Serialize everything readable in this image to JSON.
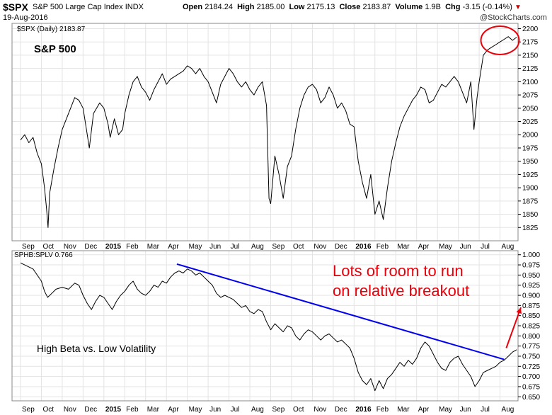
{
  "header": {
    "symbol": "$SPX",
    "name": "S&P 500 Large Cap Index",
    "exchange": "INDX",
    "date": "19-Aug-2016",
    "open_label": "Open",
    "open": "2184.24",
    "high_label": "High",
    "high": "2185.00",
    "low_label": "Low",
    "low": "2175.13",
    "close_label": "Close",
    "close": "2183.87",
    "volume_label": "Volume",
    "volume": "1.9B",
    "chg_label": "Chg",
    "chg": "-3.15 (-0.14%)",
    "chg_arrow": "▼",
    "brand": "@StockCharts.com"
  },
  "colors": {
    "price": "#000000",
    "ratio": "#000000",
    "trendline": "#0000ee",
    "annotation": "#e8000a",
    "circle": "#e8000a"
  },
  "chart_data": [
    {
      "type": "line",
      "title": "S&P 500",
      "legend": "$SPX (Daily) 2183.87",
      "ylim": [
        1800,
        2210
      ],
      "yticks": [
        1825,
        1850,
        1875,
        1900,
        1925,
        1950,
        1975,
        2000,
        2025,
        2050,
        2075,
        2100,
        2125,
        2150,
        2175,
        2200
      ],
      "x_months": [
        "Sep",
        "Oct",
        "Nov",
        "Dec",
        "2015",
        "Feb",
        "Mar",
        "Apr",
        "May",
        "Jun",
        "Jul",
        "Aug",
        "Sep",
        "Oct",
        "Nov",
        "Dec",
        "2016",
        "Feb",
        "Mar",
        "Apr",
        "May",
        "Jun",
        "Jul",
        "Aug"
      ],
      "series": [
        {
          "name": "$SPX",
          "points": [
            [
              0,
              1990
            ],
            [
              0.2,
              2000
            ],
            [
              0.4,
              1985
            ],
            [
              0.6,
              1995
            ],
            [
              0.8,
              1965
            ],
            [
              1.0,
              1945
            ],
            [
              1.15,
              1900
            ],
            [
              1.25,
              1860
            ],
            [
              1.32,
              1825
            ],
            [
              1.4,
              1890
            ],
            [
              1.6,
              1935
            ],
            [
              1.8,
              1975
            ],
            [
              2.0,
              2010
            ],
            [
              2.3,
              2040
            ],
            [
              2.6,
              2070
            ],
            [
              2.8,
              2065
            ],
            [
              3.0,
              2050
            ],
            [
              3.2,
              2000
            ],
            [
              3.3,
              1975
            ],
            [
              3.5,
              2040
            ],
            [
              3.8,
              2060
            ],
            [
              4.0,
              2050
            ],
            [
              4.2,
              2020
            ],
            [
              4.3,
              1995
            ],
            [
              4.5,
              2030
            ],
            [
              4.7,
              2000
            ],
            [
              4.9,
              2010
            ],
            [
              5.0,
              2040
            ],
            [
              5.2,
              2075
            ],
            [
              5.4,
              2100
            ],
            [
              5.6,
              2110
            ],
            [
              5.8,
              2090
            ],
            [
              6.0,
              2080
            ],
            [
              6.2,
              2065
            ],
            [
              6.4,
              2085
            ],
            [
              6.6,
              2100
            ],
            [
              6.8,
              2115
            ],
            [
              7.0,
              2095
            ],
            [
              7.2,
              2105
            ],
            [
              7.4,
              2110
            ],
            [
              7.6,
              2115
            ],
            [
              7.8,
              2120
            ],
            [
              8.0,
              2130
            ],
            [
              8.2,
              2125
            ],
            [
              8.4,
              2115
            ],
            [
              8.6,
              2125
            ],
            [
              8.8,
              2110
            ],
            [
              9.0,
              2100
            ],
            [
              9.2,
              2080
            ],
            [
              9.4,
              2060
            ],
            [
              9.6,
              2095
            ],
            [
              9.8,
              2110
            ],
            [
              10.0,
              2125
            ],
            [
              10.2,
              2115
            ],
            [
              10.4,
              2100
            ],
            [
              10.6,
              2090
            ],
            [
              10.8,
              2100
            ],
            [
              11.0,
              2085
            ],
            [
              11.2,
              2075
            ],
            [
              11.4,
              2090
            ],
            [
              11.6,
              2100
            ],
            [
              11.8,
              2055
            ],
            [
              11.92,
              1880
            ],
            [
              12.0,
              1870
            ],
            [
              12.2,
              1960
            ],
            [
              12.4,
              1925
            ],
            [
              12.6,
              1880
            ],
            [
              12.8,
              1940
            ],
            [
              13.0,
              1960
            ],
            [
              13.2,
              2010
            ],
            [
              13.4,
              2050
            ],
            [
              13.6,
              2075
            ],
            [
              13.8,
              2090
            ],
            [
              14.0,
              2095
            ],
            [
              14.2,
              2085
            ],
            [
              14.4,
              2060
            ],
            [
              14.6,
              2070
            ],
            [
              14.8,
              2090
            ],
            [
              15.0,
              2075
            ],
            [
              15.2,
              2050
            ],
            [
              15.4,
              2060
            ],
            [
              15.6,
              2045
            ],
            [
              15.8,
              2020
            ],
            [
              16.0,
              2015
            ],
            [
              16.2,
              1950
            ],
            [
              16.4,
              1910
            ],
            [
              16.6,
              1880
            ],
            [
              16.8,
              1925
            ],
            [
              17.0,
              1850
            ],
            [
              17.2,
              1875
            ],
            [
              17.4,
              1840
            ],
            [
              17.6,
              1900
            ],
            [
              17.8,
              1950
            ],
            [
              18.0,
              1985
            ],
            [
              18.2,
              2015
            ],
            [
              18.4,
              2035
            ],
            [
              18.6,
              2050
            ],
            [
              18.8,
              2065
            ],
            [
              19.0,
              2075
            ],
            [
              19.2,
              2090
            ],
            [
              19.4,
              2085
            ],
            [
              19.6,
              2060
            ],
            [
              19.8,
              2065
            ],
            [
              20.0,
              2080
            ],
            [
              20.2,
              2095
            ],
            [
              20.4,
              2090
            ],
            [
              20.6,
              2100
            ],
            [
              20.8,
              2110
            ],
            [
              21.0,
              2100
            ],
            [
              21.2,
              2080
            ],
            [
              21.4,
              2060
            ],
            [
              21.6,
              2100
            ],
            [
              21.75,
              2010
            ],
            [
              21.9,
              2070
            ],
            [
              22.0,
              2100
            ],
            [
              22.2,
              2150
            ],
            [
              22.4,
              2160
            ],
            [
              22.6,
              2165
            ],
            [
              22.8,
              2170
            ],
            [
              23.0,
              2175
            ],
            [
              23.2,
              2180
            ],
            [
              23.4,
              2185
            ],
            [
              23.6,
              2178
            ],
            [
              23.8,
              2184
            ]
          ]
        }
      ],
      "annotations": [
        {
          "type": "circle",
          "around": "recent highs near 2175-2190"
        }
      ]
    },
    {
      "type": "line",
      "title": "High Beta vs. Low Volatility",
      "legend": "SPHB:SPLV 0.766",
      "ylim": [
        0.64,
        1.01
      ],
      "yticks": [
        0.65,
        0.675,
        0.7,
        0.725,
        0.75,
        0.775,
        0.8,
        0.825,
        0.85,
        0.875,
        0.9,
        0.925,
        0.95,
        0.975,
        1.0
      ],
      "x_months": [
        "Sep",
        "Oct",
        "Nov",
        "Dec",
        "2015",
        "Feb",
        "Mar",
        "Apr",
        "May",
        "Jun",
        "Jul",
        "Aug",
        "Sep",
        "Oct",
        "Nov",
        "Dec",
        "2016",
        "Feb",
        "Mar",
        "Apr",
        "May",
        "Jun",
        "Jul",
        "Aug"
      ],
      "series": [
        {
          "name": "SPHB:SPLV",
          "points": [
            [
              0,
              0.98
            ],
            [
              0.2,
              0.975
            ],
            [
              0.4,
              0.97
            ],
            [
              0.6,
              0.965
            ],
            [
              0.8,
              0.95
            ],
            [
              1.0,
              0.935
            ],
            [
              1.15,
              0.91
            ],
            [
              1.3,
              0.895
            ],
            [
              1.5,
              0.905
            ],
            [
              1.7,
              0.915
            ],
            [
              2.0,
              0.92
            ],
            [
              2.3,
              0.915
            ],
            [
              2.6,
              0.93
            ],
            [
              2.8,
              0.925
            ],
            [
              3.0,
              0.9
            ],
            [
              3.2,
              0.88
            ],
            [
              3.4,
              0.865
            ],
            [
              3.6,
              0.885
            ],
            [
              3.8,
              0.9
            ],
            [
              4.0,
              0.895
            ],
            [
              4.2,
              0.88
            ],
            [
              4.4,
              0.865
            ],
            [
              4.6,
              0.885
            ],
            [
              4.8,
              0.9
            ],
            [
              5.0,
              0.91
            ],
            [
              5.2,
              0.925
            ],
            [
              5.4,
              0.935
            ],
            [
              5.6,
              0.915
            ],
            [
              5.8,
              0.905
            ],
            [
              6.0,
              0.9
            ],
            [
              6.2,
              0.91
            ],
            [
              6.4,
              0.925
            ],
            [
              6.6,
              0.92
            ],
            [
              6.8,
              0.935
            ],
            [
              7.0,
              0.93
            ],
            [
              7.2,
              0.945
            ],
            [
              7.4,
              0.955
            ],
            [
              7.6,
              0.96
            ],
            [
              7.8,
              0.955
            ],
            [
              8.0,
              0.965
            ],
            [
              8.2,
              0.96
            ],
            [
              8.4,
              0.95
            ],
            [
              8.6,
              0.955
            ],
            [
              8.8,
              0.945
            ],
            [
              9.0,
              0.935
            ],
            [
              9.2,
              0.925
            ],
            [
              9.4,
              0.905
            ],
            [
              9.6,
              0.895
            ],
            [
              9.8,
              0.9
            ],
            [
              10.0,
              0.895
            ],
            [
              10.2,
              0.89
            ],
            [
              10.4,
              0.88
            ],
            [
              10.6,
              0.87
            ],
            [
              10.8,
              0.875
            ],
            [
              11.0,
              0.86
            ],
            [
              11.2,
              0.855
            ],
            [
              11.4,
              0.865
            ],
            [
              11.6,
              0.86
            ],
            [
              11.8,
              0.835
            ],
            [
              12.0,
              0.815
            ],
            [
              12.2,
              0.83
            ],
            [
              12.4,
              0.82
            ],
            [
              12.6,
              0.81
            ],
            [
              12.8,
              0.825
            ],
            [
              13.0,
              0.82
            ],
            [
              13.2,
              0.8
            ],
            [
              13.4,
              0.79
            ],
            [
              13.6,
              0.805
            ],
            [
              13.8,
              0.815
            ],
            [
              14.0,
              0.81
            ],
            [
              14.2,
              0.8
            ],
            [
              14.4,
              0.79
            ],
            [
              14.6,
              0.8
            ],
            [
              14.8,
              0.805
            ],
            [
              15.0,
              0.795
            ],
            [
              15.2,
              0.785
            ],
            [
              15.4,
              0.79
            ],
            [
              15.6,
              0.78
            ],
            [
              15.8,
              0.77
            ],
            [
              16.0,
              0.745
            ],
            [
              16.2,
              0.71
            ],
            [
              16.4,
              0.69
            ],
            [
              16.6,
              0.68
            ],
            [
              16.8,
              0.695
            ],
            [
              17.0,
              0.665
            ],
            [
              17.2,
              0.69
            ],
            [
              17.4,
              0.67
            ],
            [
              17.6,
              0.695
            ],
            [
              17.8,
              0.705
            ],
            [
              18.0,
              0.72
            ],
            [
              18.2,
              0.735
            ],
            [
              18.4,
              0.725
            ],
            [
              18.6,
              0.74
            ],
            [
              18.8,
              0.73
            ],
            [
              19.0,
              0.745
            ],
            [
              19.2,
              0.77
            ],
            [
              19.4,
              0.785
            ],
            [
              19.6,
              0.775
            ],
            [
              19.8,
              0.755
            ],
            [
              20.0,
              0.735
            ],
            [
              20.2,
              0.72
            ],
            [
              20.4,
              0.715
            ],
            [
              20.6,
              0.735
            ],
            [
              20.8,
              0.745
            ],
            [
              21.0,
              0.75
            ],
            [
              21.2,
              0.73
            ],
            [
              21.4,
              0.715
            ],
            [
              21.6,
              0.7
            ],
            [
              21.8,
              0.675
            ],
            [
              22.0,
              0.69
            ],
            [
              22.2,
              0.71
            ],
            [
              22.4,
              0.715
            ],
            [
              22.6,
              0.72
            ],
            [
              22.8,
              0.725
            ],
            [
              23.0,
              0.735
            ],
            [
              23.2,
              0.74
            ],
            [
              23.4,
              0.75
            ],
            [
              23.6,
              0.76
            ],
            [
              23.8,
              0.766
            ]
          ]
        }
      ],
      "trendline": {
        "from": [
          7.5,
          0.977
        ],
        "to": [
          23.2,
          0.742
        ]
      },
      "annotations": [
        {
          "text_line1": "Lots of room to run",
          "text_line2": "on relative breakout"
        },
        {
          "type": "arrow",
          "from": [
            23.3,
            0.77
          ],
          "to": [
            24.0,
            0.87
          ]
        }
      ]
    }
  ]
}
